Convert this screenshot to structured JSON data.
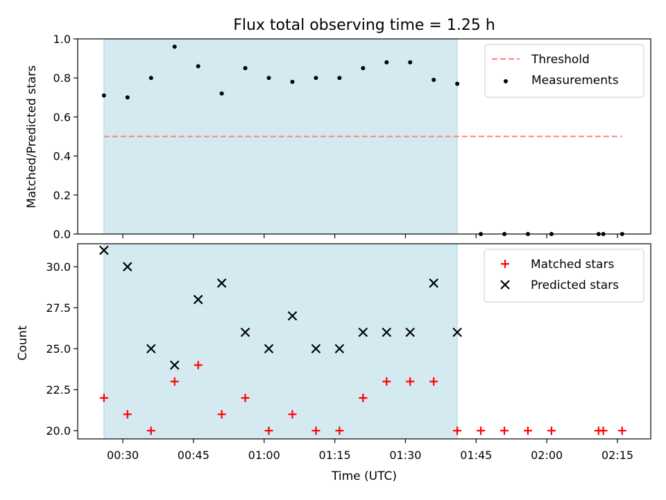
{
  "chart_data": [
    {
      "type": "scatter",
      "title": "Flux total observing time = 1.25 h",
      "ylabel": "Matched/Predicted stars",
      "xlabel": "",
      "ylim": [
        0,
        1
      ],
      "yticks": [
        "0.0",
        "0.2",
        "0.4",
        "0.6",
        "0.8",
        "1.0"
      ],
      "shaded_span": [
        "00:26",
        "01:41"
      ],
      "shade_color": "#d4eaf0",
      "series": [
        {
          "name": "Threshold",
          "style": "dashed-line",
          "color": "#ff7f7f",
          "x": [
            "00:26",
            "02:16"
          ],
          "y": [
            0.5,
            0.5
          ]
        },
        {
          "name": "Measurements",
          "style": "dot",
          "color": "#000000",
          "x": [
            "00:26",
            "00:31",
            "00:36",
            "00:41",
            "00:46",
            "00:51",
            "00:56",
            "01:01",
            "01:06",
            "01:11",
            "01:16",
            "01:21",
            "01:26",
            "01:31",
            "01:36",
            "01:41",
            "01:46",
            "01:51",
            "01:56",
            "02:01",
            "02:11",
            "02:12",
            "02:16"
          ],
          "y": [
            0.71,
            0.7,
            0.8,
            0.96,
            0.86,
            0.72,
            0.85,
            0.8,
            0.78,
            0.8,
            0.8,
            0.85,
            0.88,
            0.88,
            0.79,
            0.77,
            0.0,
            0.0,
            0.0,
            0.0,
            0.0,
            0.0,
            0.0
          ]
        }
      ],
      "legend": "top-right"
    },
    {
      "type": "scatter",
      "title": "",
      "ylabel": "Count",
      "xlabel": "Time (UTC)",
      "ylim": [
        19.5,
        31.4
      ],
      "yticks": [
        "20.0",
        "22.5",
        "25.0",
        "27.5",
        "30.0"
      ],
      "xticks": [
        "00:30",
        "00:45",
        "01:00",
        "01:15",
        "01:30",
        "01:45",
        "02:00",
        "02:15"
      ],
      "shaded_span": [
        "00:26",
        "01:41"
      ],
      "shade_color": "#d4eaf0",
      "series": [
        {
          "name": "Matched stars",
          "marker": "plus",
          "color": "#ff0000",
          "x": [
            "00:26",
            "00:31",
            "00:36",
            "00:41",
            "00:46",
            "00:51",
            "00:56",
            "01:01",
            "01:06",
            "01:11",
            "01:16",
            "01:21",
            "01:26",
            "01:31",
            "01:36",
            "01:41",
            "01:46",
            "01:51",
            "01:56",
            "02:01",
            "02:11",
            "02:12",
            "02:16"
          ],
          "y": [
            22,
            21,
            20,
            23,
            24,
            21,
            22,
            20,
            21,
            20,
            20,
            22,
            23,
            23,
            23,
            20,
            20,
            20,
            20,
            20,
            20,
            20,
            20
          ]
        },
        {
          "name": "Predicted stars",
          "marker": "x",
          "color": "#000000",
          "x": [
            "00:26",
            "00:31",
            "00:36",
            "00:41",
            "00:46",
            "00:51",
            "00:56",
            "01:01",
            "01:06",
            "01:11",
            "01:16",
            "01:21",
            "01:26",
            "01:31",
            "01:36",
            "01:41"
          ],
          "y": [
            31,
            30,
            25,
            24,
            28,
            29,
            26,
            25,
            27,
            25,
            25,
            26,
            26,
            26,
            29,
            26
          ]
        }
      ],
      "legend": "top-right"
    }
  ]
}
